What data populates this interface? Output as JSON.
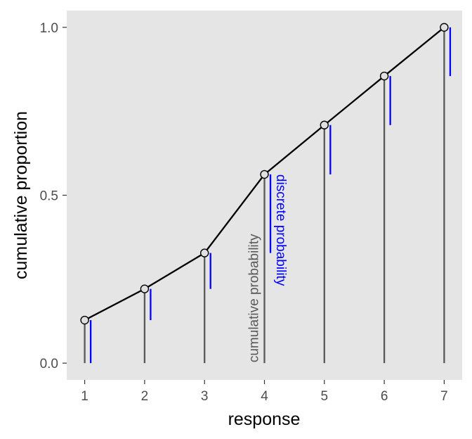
{
  "chart_data": {
    "type": "line",
    "xlabel": "response",
    "ylabel": "cumulative proportion",
    "x": [
      1,
      2,
      3,
      4,
      5,
      6,
      7
    ],
    "x_ticks": [
      "1",
      "2",
      "3",
      "4",
      "5",
      "6",
      "7"
    ],
    "y_ticks": [
      "0.0",
      "0.5",
      "1.0"
    ],
    "y_tick_values": [
      0.0,
      0.5,
      1.0
    ],
    "xlim": [
      0.7,
      7.3
    ],
    "ylim": [
      -0.05,
      1.05
    ],
    "series": [
      {
        "role": "cumulative probability",
        "values": [
          0.128,
          0.221,
          0.328,
          0.562,
          0.709,
          0.855,
          1.0
        ]
      }
    ],
    "annotations": {
      "cumulative": "cumulative probability",
      "discrete": "discrete probability",
      "at_x": 4
    },
    "grid": false,
    "colors": {
      "panel": "#e5e5e5",
      "cumulative_line": "#000000",
      "cumulative_segment": "#595959",
      "discrete_segment": "#0000ff",
      "point_fill": "#e0e0e0",
      "tick_text": "#4d4d4d"
    }
  }
}
